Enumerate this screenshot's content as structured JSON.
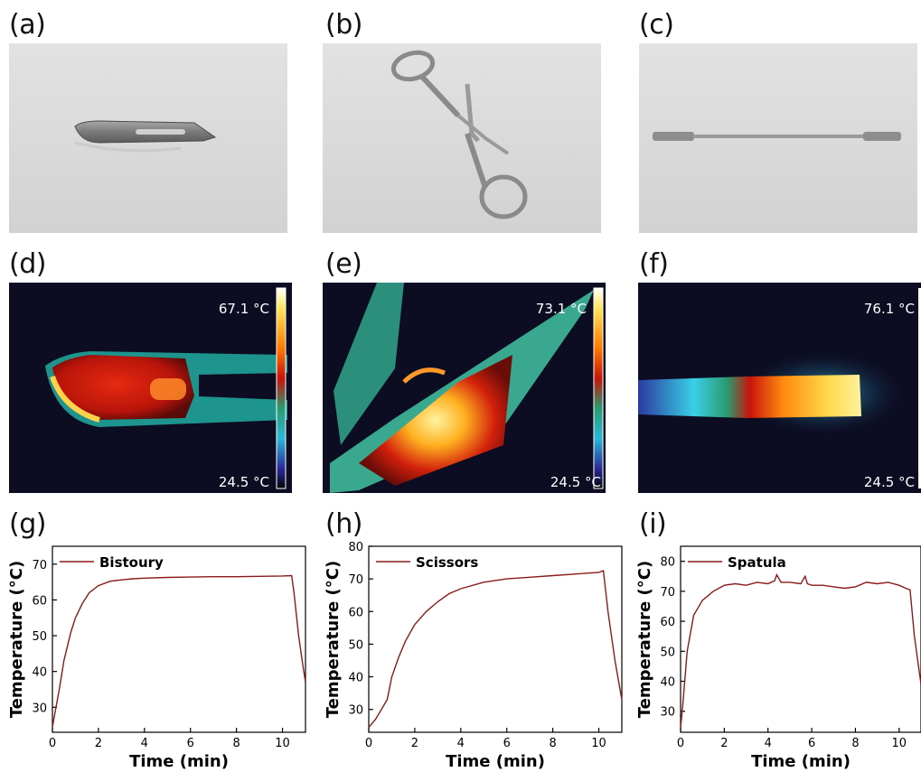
{
  "panel_labels": [
    "(a)",
    "(b)",
    "(c)",
    "(d)",
    "(e)",
    "(f)",
    "(g)",
    "(h)",
    "(i)"
  ],
  "photos": [
    {
      "subject": "scalpel blade",
      "background": "#dcdcdc"
    },
    {
      "subject": "scissors",
      "background": "#dcdcdc"
    },
    {
      "subject": "spatula",
      "background": "#dcdcdc"
    }
  ],
  "thermal": [
    {
      "max_label": "67.1 °C",
      "min_label": "24.5 °C",
      "max": 67.1,
      "min": 24.5
    },
    {
      "max_label": "73.1 °C",
      "min_label": "24.5 °C",
      "max": 73.1,
      "min": 24.5
    },
    {
      "max_label": "76.1 °C",
      "min_label": "24.5 °C",
      "max": 76.1,
      "min": 24.5
    }
  ],
  "colors": {
    "line": "#8b1a1a",
    "photo_bg": "#dcdcdc",
    "thermal_bg": "#0a0a1e"
  },
  "chart_data": [
    {
      "type": "line",
      "xlabel": "Time (min)",
      "ylabel": "Temperature (°C)",
      "xlim": [
        0,
        11
      ],
      "ylim": [
        23,
        75
      ],
      "xticks": [
        0,
        2,
        4,
        6,
        8,
        10
      ],
      "yticks": [
        30,
        40,
        50,
        60,
        70
      ],
      "legend": "top-left",
      "series": [
        {
          "name": "Bistoury",
          "x": [
            0,
            0.1,
            0.3,
            0.5,
            0.8,
            1.0,
            1.3,
            1.6,
            2.0,
            2.5,
            3.0,
            3.5,
            4.0,
            5.0,
            6.0,
            7.0,
            8.0,
            9.0,
            10.0,
            10.4,
            10.5,
            10.7,
            10.9,
            11.0
          ],
          "y": [
            24.5,
            28,
            35,
            43,
            51,
            55,
            59,
            62,
            64,
            65.2,
            65.6,
            65.9,
            66.1,
            66.3,
            66.4,
            66.5,
            66.5,
            66.6,
            66.7,
            66.8,
            62,
            50,
            41,
            37
          ]
        }
      ]
    },
    {
      "type": "line",
      "xlabel": "Time (min)",
      "ylabel": "Temperature (°C)",
      "xlim": [
        0,
        11
      ],
      "ylim": [
        23,
        80
      ],
      "xticks": [
        0,
        2,
        4,
        6,
        8,
        10
      ],
      "yticks": [
        30,
        40,
        50,
        60,
        70,
        80
      ],
      "legend": "top-left",
      "series": [
        {
          "name": "Scissors",
          "x": [
            0,
            0.3,
            0.8,
            1.0,
            1.3,
            1.6,
            2.0,
            2.5,
            3.0,
            3.5,
            4.0,
            5.0,
            6.0,
            7.0,
            8.0,
            9.0,
            10.0,
            10.2,
            10.4,
            10.7,
            11.0
          ],
          "y": [
            24.5,
            27,
            33,
            40,
            46,
            51,
            56,
            60,
            63,
            65.5,
            67,
            69,
            70,
            70.5,
            71,
            71.5,
            72,
            72.5,
            60,
            45,
            33
          ]
        }
      ]
    },
    {
      "type": "line",
      "xlabel": "Time (min)",
      "ylabel": "Temperature (°C)",
      "xlim": [
        0,
        11
      ],
      "ylim": [
        23,
        85
      ],
      "xticks": [
        0,
        2,
        4,
        6,
        8,
        10
      ],
      "yticks": [
        30,
        40,
        50,
        60,
        70,
        80
      ],
      "legend": "top-left",
      "series": [
        {
          "name": "Spatula",
          "x": [
            0,
            0.1,
            0.3,
            0.6,
            1.0,
            1.5,
            2.0,
            2.5,
            3.0,
            3.5,
            4.0,
            4.3,
            4.4,
            4.6,
            5.0,
            5.5,
            5.7,
            5.8,
            6.0,
            6.5,
            7.0,
            7.5,
            8.0,
            8.5,
            9.0,
            9.5,
            10.0,
            10.3,
            10.5,
            10.7,
            11.0
          ],
          "y": [
            24.5,
            32,
            50,
            62,
            67,
            70,
            72,
            72.5,
            72,
            73,
            72.5,
            73.5,
            75.5,
            73,
            73,
            72.5,
            75,
            72.5,
            72,
            72,
            71.5,
            71,
            71.5,
            73,
            72.5,
            73,
            72,
            71,
            70.5,
            55,
            39
          ]
        }
      ]
    }
  ]
}
